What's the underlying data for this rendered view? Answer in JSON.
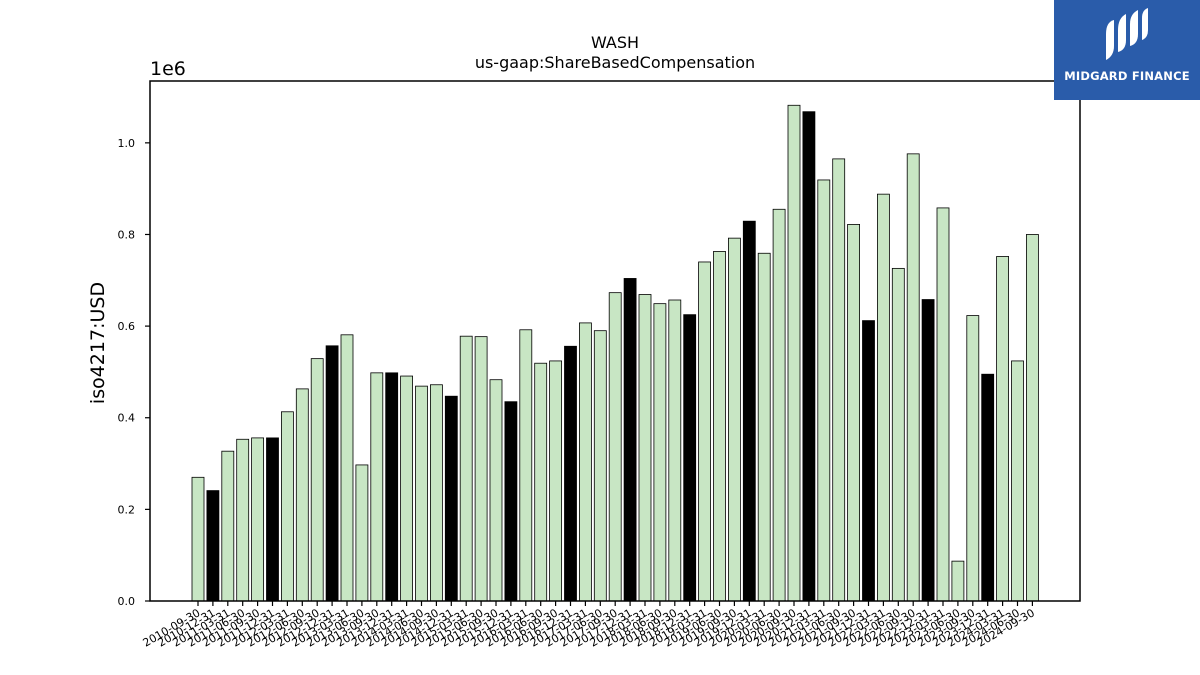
{
  "brand": {
    "name": "MIDGARD FINANCE",
    "bg_color": "#2a5caa"
  },
  "chart_data": {
    "type": "bar",
    "title": "WASH",
    "subtitle": "us-gaap:ShareBasedCompensation",
    "ylabel": "iso4217:USD",
    "xlabel": "",
    "y_offset_label": "1e6",
    "y_scale": 1000000,
    "ylim": [
      0,
      1.135
    ],
    "yticks": [
      0.0,
      0.2,
      0.4,
      0.6,
      0.8,
      1.0
    ],
    "grid": false,
    "colors": {
      "light": "#c8e6c4",
      "dark": "#000000",
      "edge": "#000000"
    },
    "categories": [
      "2010-09-30",
      "2010-12-31",
      "2011-03-31",
      "2011-06-30",
      "2011-09-30",
      "2011-12-31",
      "2012-03-31",
      "2012-06-30",
      "2012-09-30",
      "2012-12-31",
      "2013-03-31",
      "2013-06-30",
      "2013-09-30",
      "2013-12-31",
      "2014-03-31",
      "2014-06-30",
      "2014-09-30",
      "2014-12-31",
      "2015-03-31",
      "2015-06-30",
      "2015-09-30",
      "2015-12-31",
      "2016-03-31",
      "2016-06-30",
      "2016-09-30",
      "2016-12-31",
      "2017-03-31",
      "2017-06-30",
      "2017-09-30",
      "2017-12-31",
      "2018-03-31",
      "2018-06-30",
      "2018-09-30",
      "2018-12-31",
      "2019-03-31",
      "2019-06-30",
      "2019-09-30",
      "2019-12-31",
      "2020-03-31",
      "2020-06-30",
      "2020-09-30",
      "2020-12-31",
      "2021-03-31",
      "2021-06-30",
      "2021-09-30",
      "2021-12-31",
      "2022-03-31",
      "2022-06-30",
      "2022-09-30",
      "2022-12-31",
      "2023-03-31",
      "2023-06-30",
      "2023-09-30",
      "2023-12-31",
      "2024-03-31",
      "2024-06-30",
      "2024-09-30"
    ],
    "values": [
      0.27,
      0.241,
      0.327,
      0.353,
      0.356,
      0.356,
      0.413,
      0.463,
      0.529,
      0.557,
      0.581,
      0.297,
      0.498,
      0.498,
      0.491,
      0.469,
      0.472,
      0.447,
      0.578,
      0.577,
      0.483,
      0.435,
      0.592,
      0.519,
      0.524,
      0.556,
      0.607,
      0.59,
      0.673,
      0.704,
      0.669,
      0.649,
      0.657,
      0.625,
      0.74,
      0.763,
      0.792,
      0.829,
      0.759,
      0.855,
      1.082,
      1.068,
      0.919,
      0.965,
      0.822,
      0.612,
      0.888,
      0.726,
      0.976,
      0.658,
      0.858,
      0.087,
      0.623,
      0.495,
      0.752,
      0.524,
      0.8
    ],
    "highlight": [
      false,
      true,
      false,
      false,
      false,
      true,
      false,
      false,
      false,
      true,
      false,
      false,
      false,
      true,
      false,
      false,
      false,
      true,
      false,
      false,
      false,
      true,
      false,
      false,
      false,
      true,
      false,
      false,
      false,
      true,
      false,
      false,
      false,
      true,
      false,
      false,
      false,
      true,
      false,
      false,
      false,
      true,
      false,
      false,
      false,
      true,
      false,
      false,
      false,
      true,
      false,
      false,
      false,
      true,
      false,
      false,
      false
    ]
  }
}
